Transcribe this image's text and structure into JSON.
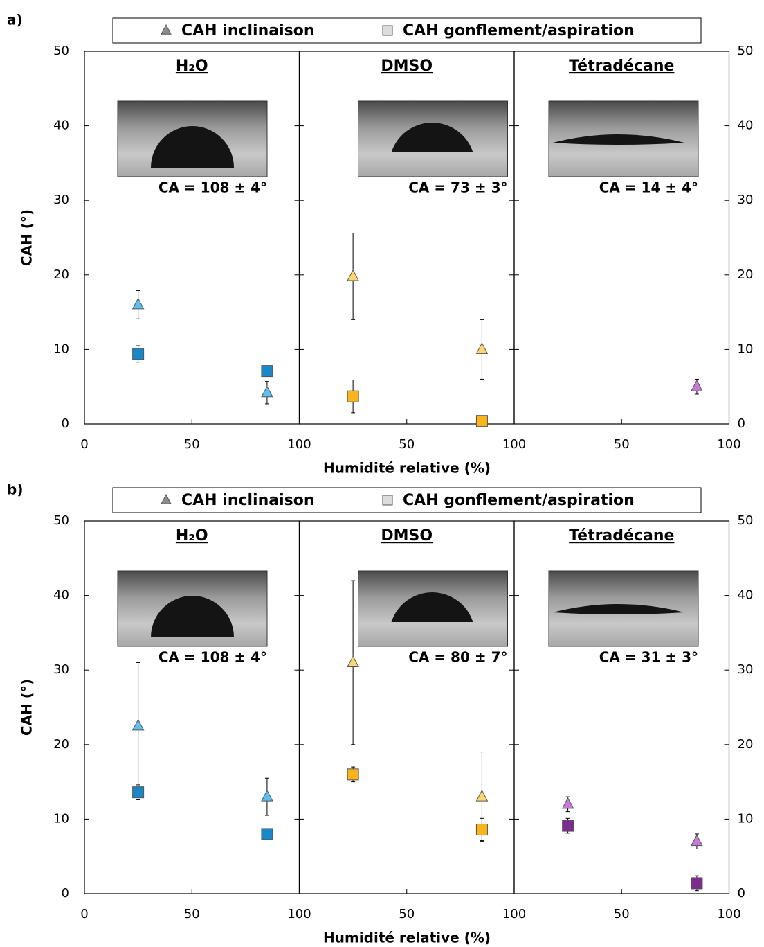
{
  "chart_data": [
    {
      "type": "scatter",
      "label": "a)",
      "legend": [
        {
          "name": "CAH inclinaison",
          "marker": "triangle",
          "color": "#8c8c8c"
        },
        {
          "name": "CAH gonflement/aspiration",
          "marker": "square",
          "color": "#dcdcdc"
        }
      ],
      "xlabel": "Humidité relative (%)",
      "ylabel": "CAH (°)",
      "xlim": [
        0,
        100
      ],
      "xticks": [
        0,
        50,
        100
      ],
      "ylim": [
        0,
        50
      ],
      "yticks": [
        0,
        10,
        20,
        30,
        40,
        50
      ],
      "panels": [
        {
          "title": "H₂O",
          "title_color": "#1a87c9",
          "annotation": "CA = 108 ± 4°",
          "series": [
            {
              "marker": "triangle",
              "color": "#5bc0f0",
              "x": [
                25,
                85
              ],
              "values": [
                16,
                4.2
              ],
              "errors": [
                1.9,
                1.5
              ]
            },
            {
              "marker": "square",
              "color": "#1a87c9",
              "x": [
                25,
                85
              ],
              "values": [
                9.4,
                7.1
              ],
              "errors": [
                1.1,
                0.6
              ]
            }
          ]
        },
        {
          "title": "DMSO",
          "title_color": "#f9b51b",
          "annotation": "CA = 73 ± 3°",
          "series": [
            {
              "marker": "triangle",
              "color": "#fcd66e",
              "x": [
                25,
                85
              ],
              "values": [
                19.8,
                10
              ],
              "errors": [
                5.8,
                4
              ]
            },
            {
              "marker": "square",
              "color": "#f9b51b",
              "x": [
                25,
                85
              ],
              "values": [
                3.7,
                0.4
              ],
              "errors": [
                2.2,
                0.2
              ]
            }
          ]
        },
        {
          "title": "Tétradécane",
          "title_color": "#7b2c8e",
          "annotation": "CA = 14 ± 4°",
          "series": [
            {
              "marker": "triangle",
              "color": "#c878d8",
              "x": [
                85
              ],
              "values": [
                5
              ],
              "errors": [
                1
              ]
            }
          ]
        }
      ]
    },
    {
      "type": "scatter",
      "label": "b)",
      "legend": [
        {
          "name": "CAH inclinaison",
          "marker": "triangle",
          "color": "#8c8c8c"
        },
        {
          "name": "CAH gonflement/aspiration",
          "marker": "square",
          "color": "#dcdcdc"
        }
      ],
      "xlabel": "Humidité relative (%)",
      "ylabel": "CAH (°)",
      "xlim": [
        0,
        100
      ],
      "xticks": [
        0,
        50,
        100
      ],
      "ylim": [
        0,
        50
      ],
      "yticks": [
        0,
        10,
        20,
        30,
        40,
        50
      ],
      "panels": [
        {
          "title": "H₂O",
          "title_color": "#1a87c9",
          "annotation": "CA = 108 ± 4°",
          "series": [
            {
              "marker": "triangle",
              "color": "#5bc0f0",
              "x": [
                25,
                85
              ],
              "values": [
                22.5,
                13
              ],
              "errors": [
                8.5,
                2.5
              ]
            },
            {
              "marker": "square",
              "color": "#1a87c9",
              "x": [
                25,
                85
              ],
              "values": [
                13.6,
                8
              ],
              "errors": [
                1,
                0.3
              ]
            }
          ]
        },
        {
          "title": "DMSO",
          "title_color": "#f9b51b",
          "annotation": "CA = 80 ± 7°",
          "series": [
            {
              "marker": "triangle",
              "color": "#fcd66e",
              "x": [
                25,
                85
              ],
              "values": [
                31,
                13
              ],
              "errors": [
                11,
                6
              ]
            },
            {
              "marker": "square",
              "color": "#f9b51b",
              "x": [
                25,
                85
              ],
              "values": [
                16,
                8.6
              ],
              "errors": [
                1,
                1.5
              ]
            }
          ]
        },
        {
          "title": "Tétradécane",
          "title_color": "#7b2c8e",
          "annotation": "CA = 31 ± 3°",
          "series": [
            {
              "marker": "triangle",
              "color": "#c878d8",
              "x": [
                25,
                85
              ],
              "values": [
                12,
                7
              ],
              "errors": [
                1,
                1
              ]
            },
            {
              "marker": "square",
              "color": "#7b2c8e",
              "x": [
                25,
                85
              ],
              "values": [
                9.1,
                1.4
              ],
              "errors": [
                1,
                1
              ]
            }
          ]
        }
      ]
    }
  ]
}
